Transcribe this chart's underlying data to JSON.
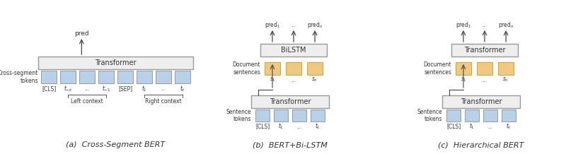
{
  "bg_color": "#ffffff",
  "blue_color": "#b8d0e8",
  "orange_color": "#f0c882",
  "box_face": "#eeeeee",
  "box_edge": "#999999",
  "text_color": "#333333",
  "arrow_color": "#444444",
  "bracket_color": "#555555",
  "subtitle_a": "(a)  Cross-Segment BERT",
  "subtitle_b": "(b)  BERT+Bi-LSTM",
  "subtitle_c": "(c)  Hierarchical BERT",
  "fig_w": 8.0,
  "fig_h": 2.18,
  "dpi": 100
}
